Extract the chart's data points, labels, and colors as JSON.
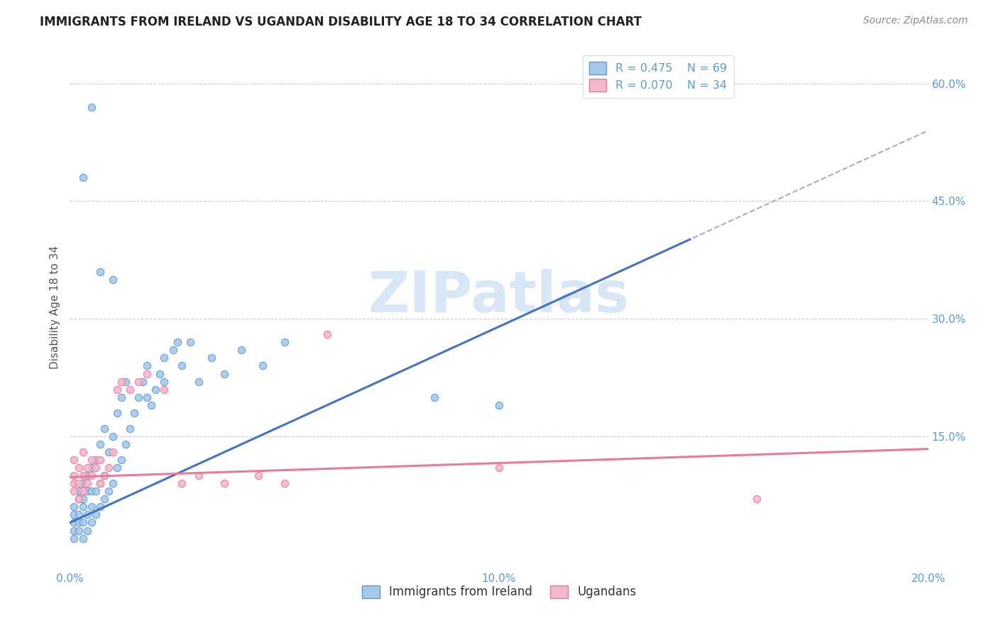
{
  "title": "IMMIGRANTS FROM IRELAND VS UGANDAN DISABILITY AGE 18 TO 34 CORRELATION CHART",
  "source": "Source: ZipAtlas.com",
  "ylabel": "Disability Age 18 to 34",
  "xlim": [
    0.0,
    0.2
  ],
  "ylim": [
    -0.02,
    0.65
  ],
  "xtick_vals": [
    0.0,
    0.05,
    0.1,
    0.15,
    0.2
  ],
  "xtick_labels": [
    "0.0%",
    "",
    "10.0%",
    "",
    "20.0%"
  ],
  "ytick_vals": [
    0.15,
    0.3,
    0.45,
    0.6
  ],
  "ytick_labels": [
    "15.0%",
    "30.0%",
    "45.0%",
    "60.0%"
  ],
  "color_ireland": "#a8c8e8",
  "color_ireland_edge": "#5b9bd5",
  "color_uganda": "#f4b8cc",
  "color_uganda_edge": "#e87a9a",
  "color_line_ireland": "#4472c4",
  "color_line_ext": "#aaaacc",
  "color_line_uganda": "#e87a9a",
  "color_grid": "#cccccc",
  "watermark": "ZIPatlas",
  "ireland_x": [
    0.001,
    0.001,
    0.001,
    0.001,
    0.001,
    0.002,
    0.002,
    0.002,
    0.002,
    0.002,
    0.003,
    0.003,
    0.003,
    0.003,
    0.003,
    0.004,
    0.004,
    0.004,
    0.004,
    0.005,
    0.005,
    0.005,
    0.005,
    0.006,
    0.006,
    0.006,
    0.007,
    0.007,
    0.007,
    0.008,
    0.008,
    0.008,
    0.009,
    0.009,
    0.01,
    0.01,
    0.011,
    0.011,
    0.012,
    0.012,
    0.013,
    0.013,
    0.014,
    0.015,
    0.016,
    0.017,
    0.018,
    0.019,
    0.02,
    0.021,
    0.022,
    0.024,
    0.026,
    0.028,
    0.03,
    0.033,
    0.036,
    0.04,
    0.045,
    0.05,
    0.018,
    0.022,
    0.025,
    0.01,
    0.007,
    0.005,
    0.003,
    0.1,
    0.085
  ],
  "ireland_y": [
    0.02,
    0.03,
    0.04,
    0.05,
    0.06,
    0.03,
    0.04,
    0.05,
    0.07,
    0.08,
    0.02,
    0.04,
    0.06,
    0.07,
    0.09,
    0.03,
    0.05,
    0.08,
    0.1,
    0.04,
    0.06,
    0.08,
    0.11,
    0.05,
    0.08,
    0.12,
    0.06,
    0.09,
    0.14,
    0.07,
    0.1,
    0.16,
    0.08,
    0.13,
    0.09,
    0.15,
    0.11,
    0.18,
    0.12,
    0.2,
    0.14,
    0.22,
    0.16,
    0.18,
    0.2,
    0.22,
    0.24,
    0.19,
    0.21,
    0.23,
    0.25,
    0.26,
    0.24,
    0.27,
    0.22,
    0.25,
    0.23,
    0.26,
    0.24,
    0.27,
    0.2,
    0.22,
    0.27,
    0.35,
    0.36,
    0.57,
    0.48,
    0.19,
    0.2
  ],
  "uganda_x": [
    0.001,
    0.001,
    0.001,
    0.001,
    0.002,
    0.002,
    0.002,
    0.003,
    0.003,
    0.003,
    0.004,
    0.004,
    0.005,
    0.005,
    0.006,
    0.007,
    0.007,
    0.008,
    0.009,
    0.01,
    0.011,
    0.012,
    0.014,
    0.016,
    0.018,
    0.022,
    0.026,
    0.03,
    0.036,
    0.044,
    0.05,
    0.06,
    0.1,
    0.16
  ],
  "uganda_y": [
    0.08,
    0.09,
    0.1,
    0.12,
    0.07,
    0.09,
    0.11,
    0.08,
    0.1,
    0.13,
    0.09,
    0.11,
    0.1,
    0.12,
    0.11,
    0.09,
    0.12,
    0.1,
    0.11,
    0.13,
    0.21,
    0.22,
    0.21,
    0.22,
    0.23,
    0.21,
    0.09,
    0.1,
    0.09,
    0.1,
    0.09,
    0.28,
    0.11,
    0.07
  ],
  "reg_ireland": [
    0.028,
    3.0
  ],
  "reg_uganda": [
    0.095,
    0.22
  ]
}
